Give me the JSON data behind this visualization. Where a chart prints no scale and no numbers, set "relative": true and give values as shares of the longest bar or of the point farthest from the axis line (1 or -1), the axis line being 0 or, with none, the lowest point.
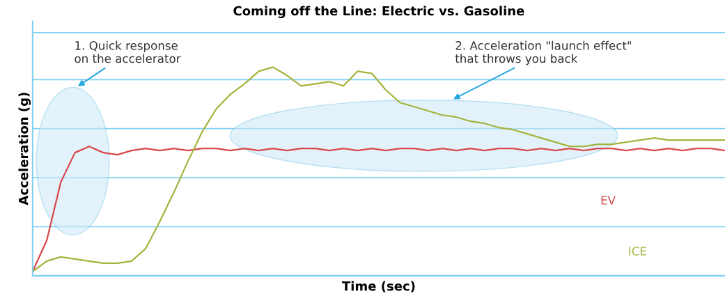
{
  "chart_data": {
    "type": "line",
    "title": "Coming off the Line: Electric vs. Gasoline",
    "xlabel": "Time (sec)",
    "ylabel": "Acceleration (g)",
    "relative": true,
    "legend": false,
    "ref_lines": [
      {
        "axis": "y",
        "value": 0.235,
        "color": "#7fd0f0"
      },
      {
        "axis": "y",
        "value": 0.47,
        "color": "#7fd0f0"
      },
      {
        "axis": "y",
        "value": 0.705,
        "color": "#7fd0f0"
      },
      {
        "axis": "y",
        "value": 0.94,
        "color": "#7fd0f0"
      },
      {
        "axis": "y",
        "value": 1.165,
        "color": "#7fd0f0"
      }
    ],
    "marker": "none",
    "line_style": "solid",
    "categories": [
      null,
      null,
      null,
      null,
      null,
      null,
      null,
      null,
      null,
      null,
      null,
      null,
      null,
      null,
      null,
      null,
      null,
      null,
      null,
      null,
      null,
      null,
      null,
      null,
      null,
      null,
      null,
      null,
      null,
      null,
      null,
      null,
      null,
      null,
      null,
      null,
      null,
      null,
      null,
      null,
      null,
      null,
      null,
      null,
      null,
      null,
      null,
      null,
      null,
      null
    ],
    "series": [
      {
        "name": "EV",
        "color": "#d9474a",
        "values": [
          0.02,
          0.17,
          0.45,
          0.59,
          0.62,
          0.59,
          0.58,
          0.6,
          0.61,
          0.6,
          0.61,
          0.6,
          0.61,
          0.61,
          0.6,
          0.61,
          0.6,
          0.61,
          0.6,
          0.61,
          0.61,
          0.6,
          0.61,
          0.6,
          0.61,
          0.6,
          0.61,
          0.61,
          0.6,
          0.61,
          0.6,
          0.61,
          0.6,
          0.61,
          0.61,
          0.6,
          0.61,
          0.6,
          0.61,
          0.6,
          0.61,
          0.61,
          0.6,
          0.61,
          0.6,
          0.61,
          0.6,
          0.61,
          0.61,
          0.6
        ]
      },
      {
        "name": "ICE",
        "color": "#a3b43c",
        "values": [
          0.02,
          0.07,
          0.09,
          0.08,
          0.07,
          0.06,
          0.06,
          0.07,
          0.13,
          0.26,
          0.4,
          0.55,
          0.69,
          0.8,
          0.87,
          0.92,
          0.98,
          1.0,
          0.96,
          0.91,
          0.92,
          0.93,
          0.91,
          0.98,
          0.97,
          0.89,
          0.83,
          0.81,
          0.79,
          0.77,
          0.76,
          0.74,
          0.73,
          0.71,
          0.7,
          0.68,
          0.66,
          0.64,
          0.62,
          0.62,
          0.63,
          0.63,
          0.64,
          0.65,
          0.66,
          0.65,
          0.65,
          0.65,
          0.65,
          0.65
        ]
      }
    ],
    "annotations": [
      "1. Quick response\non the accelerator",
      "2. Acceleration \"launch effect\"\nthat throws you back"
    ]
  }
}
